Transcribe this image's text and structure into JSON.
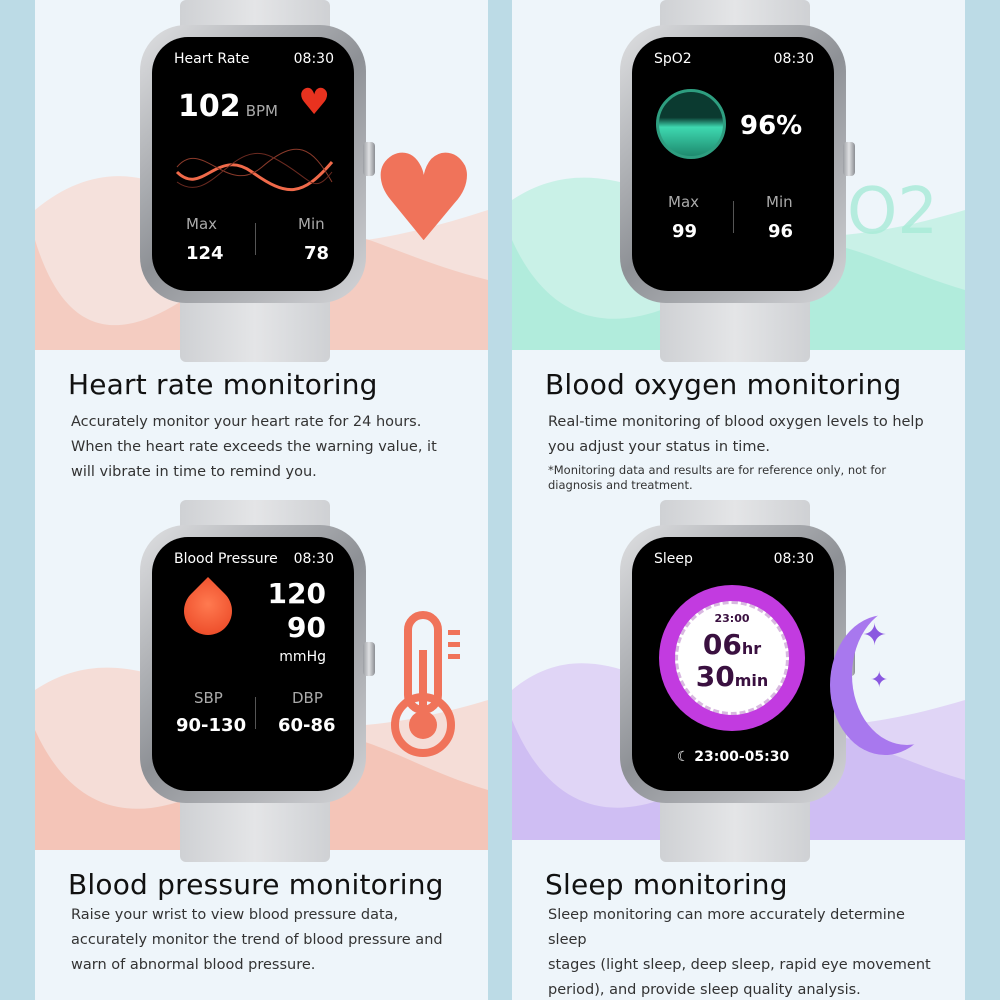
{
  "heart_rate": {
    "screen_title": "Heart Rate",
    "time": "08:30",
    "value": "102",
    "unit": "BPM",
    "max_label": "Max",
    "max_value": "124",
    "min_label": "Min",
    "min_value": "78",
    "heading": "Heart rate monitoring",
    "description": [
      "Accurately monitor your heart rate for 24 hours.",
      "When the heart rate exceeds the warning value, it",
      "will vibrate in time to remind you."
    ],
    "accent": "#f0614a",
    "icon": "heart-icon"
  },
  "spo2": {
    "screen_title": "SpO2",
    "time": "08:30",
    "value": "96%",
    "max_label": "Max",
    "max_value": "99",
    "min_label": "Min",
    "min_value": "96",
    "heading": "Blood oxygen monitoring",
    "description": [
      "Real-time monitoring of blood oxygen levels to help",
      "you adjust your status in time."
    ],
    "note": [
      "*Monitoring data and results are for reference only, not for",
      "diagnosis and treatment."
    ],
    "accent": "#3ed8b0",
    "background_text": "O2"
  },
  "blood_pressure": {
    "screen_title": "Blood Pressure",
    "time": "08:30",
    "systolic": "120",
    "diastolic": "90",
    "unit": "mmHg",
    "sbp_label": "SBP",
    "sbp_range": "90-130",
    "dbp_label": "DBP",
    "dbp_range": "60-86",
    "heading": "Blood pressure monitoring",
    "description": [
      "Raise your wrist to view blood pressure data,",
      "accurately monitor the trend of blood pressure and",
      "warn of abnormal blood pressure."
    ],
    "accent": "#f0614a",
    "icon": "thermometer-icon"
  },
  "sleep": {
    "screen_title": "Sleep",
    "time": "08:30",
    "dial_time": "23:00",
    "hours": "06",
    "hours_unit": "hr",
    "minutes": "30",
    "minutes_unit": "min",
    "range": "23:00-05:30",
    "heading": "Sleep monitoring",
    "description": [
      "Sleep monitoring can more accurately determine sleep",
      "stages (light sleep, deep sleep, rapid eye movement",
      "period), and provide sleep quality analysis."
    ],
    "accent": "#c23be0",
    "icon": "moon-icon"
  }
}
